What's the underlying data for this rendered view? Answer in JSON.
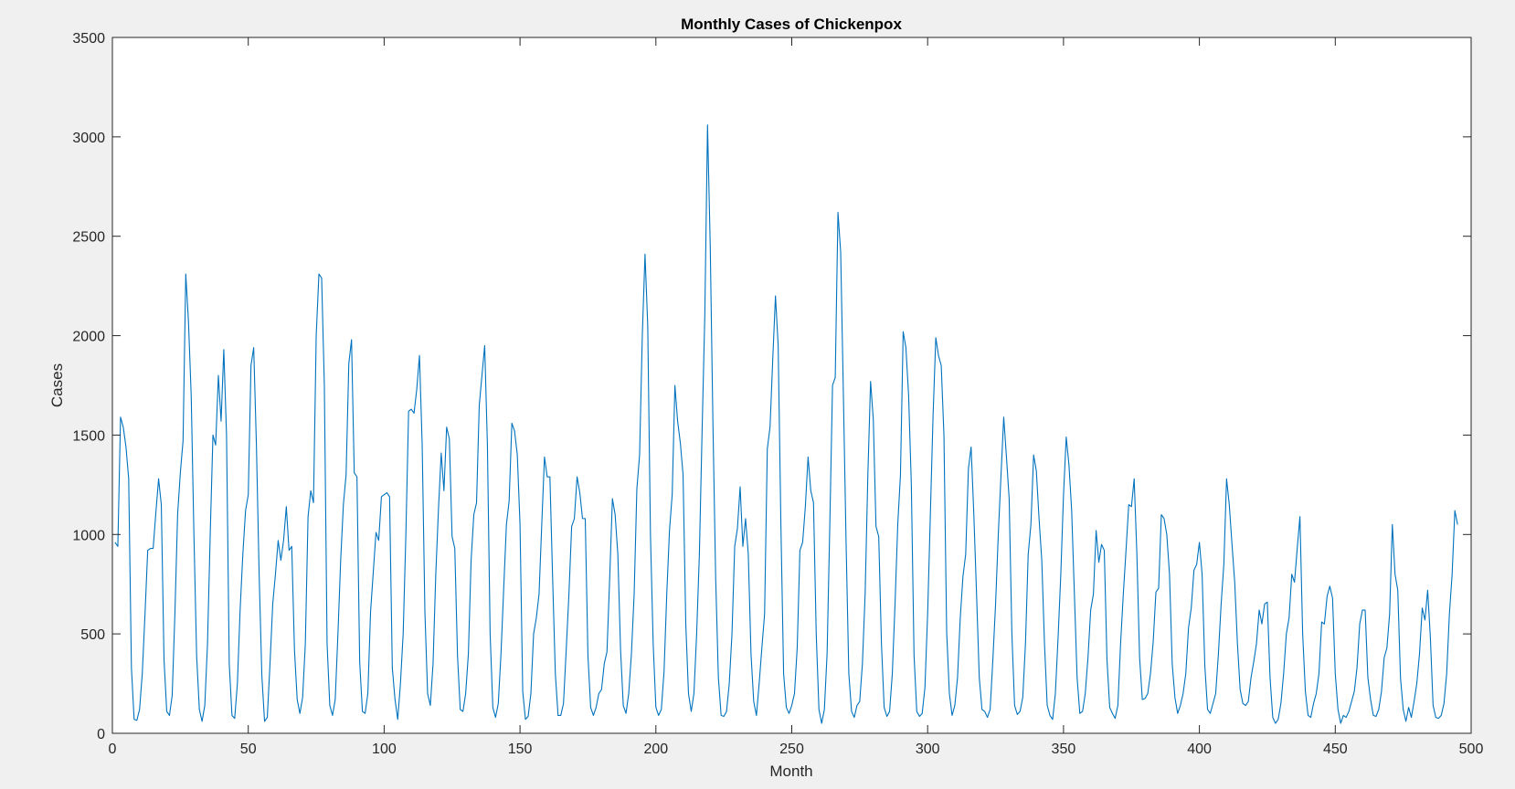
{
  "chart_data": {
    "type": "line",
    "title": "Monthly Cases of Chickenpox",
    "xlabel": "Month",
    "ylabel": "Cases",
    "xlim": [
      0,
      500
    ],
    "ylim": [
      0,
      3500
    ],
    "grid": false,
    "x_ticks": [
      0,
      50,
      100,
      150,
      200,
      250,
      300,
      350,
      400,
      450,
      500
    ],
    "y_ticks": [
      0,
      500,
      1000,
      1500,
      2000,
      2500,
      3000,
      3500
    ],
    "x_tick_labels": [
      "0",
      "50",
      "100",
      "150",
      "200",
      "250",
      "300",
      "350",
      "400",
      "450",
      "500"
    ],
    "y_tick_labels": [
      "0",
      "500",
      "1000",
      "1500",
      "2000",
      "2500",
      "3000",
      "3500"
    ],
    "series": [
      {
        "name": "Cases",
        "color": "#0072bd",
        "x_start": 1,
        "values": [
          960,
          940,
          1590,
          1540,
          1440,
          1280,
          330,
          70,
          65,
          120,
          300,
          600,
          920,
          930,
          930,
          1110,
          1280,
          1150,
          370,
          110,
          90,
          190,
          600,
          1100,
          1310,
          1470,
          2310,
          2070,
          1700,
          1000,
          390,
          120,
          60,
          140,
          450,
          1000,
          1500,
          1450,
          1800,
          1570,
          1930,
          1500,
          350,
          90,
          75,
          250,
          620,
          900,
          1120,
          1200,
          1850,
          1940,
          1450,
          800,
          290,
          60,
          80,
          350,
          650,
          800,
          970,
          870,
          970,
          1140,
          920,
          940,
          420,
          170,
          100,
          180,
          450,
          1090,
          1220,
          1160,
          2000,
          2310,
          2290,
          1750,
          450,
          140,
          90,
          170,
          500,
          870,
          1150,
          1300,
          1860,
          1980,
          1310,
          1290,
          360,
          110,
          100,
          200,
          610,
          810,
          1010,
          970,
          1190,
          1200,
          1210,
          1190,
          330,
          170,
          70,
          250,
          500,
          1000,
          1620,
          1630,
          1610,
          1730,
          1900,
          1450,
          610,
          200,
          140,
          350,
          800,
          1130,
          1410,
          1220,
          1540,
          1480,
          990,
          930,
          390,
          120,
          110,
          200,
          400,
          870,
          1100,
          1160,
          1650,
          1800,
          1950,
          1450,
          500,
          130,
          80,
          150,
          400,
          730,
          1050,
          1170,
          1560,
          1520,
          1400,
          1050,
          210,
          70,
          85,
          200,
          500,
          580,
          700,
          1050,
          1390,
          1290,
          1290,
          780,
          300,
          90,
          90,
          150,
          420,
          700,
          1040,
          1080,
          1290,
          1210,
          1080,
          1080,
          390,
          130,
          90,
          130,
          200,
          220,
          350,
          410,
          780,
          1180,
          1100,
          900,
          420,
          140,
          100,
          200,
          400,
          700,
          1230,
          1400,
          2000,
          2410,
          2050,
          1000,
          450,
          130,
          90,
          120,
          310,
          700,
          1020,
          1200,
          1750,
          1570,
          1460,
          1300,
          550,
          200,
          110,
          200,
          500,
          900,
          1520,
          2100,
          3060,
          2450,
          1550,
          780,
          280,
          90,
          85,
          110,
          250,
          500,
          940,
          1030,
          1240,
          940,
          1080,
          900,
          400,
          160,
          90,
          250,
          430,
          600,
          1430,
          1540,
          1880,
          2200,
          1950,
          1050,
          300,
          130,
          100,
          140,
          200,
          430,
          920,
          960,
          1140,
          1390,
          1220,
          1160,
          500,
          120,
          50,
          120,
          400,
          1050,
          1750,
          1790,
          2620,
          2420,
          1700,
          950,
          300,
          110,
          80,
          140,
          160,
          350,
          700,
          1300,
          1770,
          1580,
          1040,
          990,
          450,
          130,
          85,
          110,
          300,
          650,
          1050,
          1300,
          2020,
          1940,
          1700,
          1250,
          390,
          110,
          85,
          100,
          230,
          600,
          1100,
          1600,
          1990,
          1900,
          1850,
          1500,
          510,
          200,
          90,
          140,
          280,
          580,
          790,
          900,
          1330,
          1440,
          1100,
          700,
          280,
          120,
          110,
          80,
          120,
          370,
          650,
          1000,
          1300,
          1590,
          1390,
          1180,
          500,
          140,
          95,
          110,
          180,
          450,
          900,
          1050,
          1400,
          1320,
          1080,
          870,
          450,
          140,
          90,
          70,
          200,
          480,
          800,
          1200,
          1490,
          1350,
          1120,
          700,
          280,
          100,
          110,
          200,
          380,
          620,
          700,
          1020,
          860,
          950,
          920,
          370,
          130,
          100,
          75,
          140,
          450,
          700,
          920,
          1150,
          1140,
          1280,
          900,
          380,
          170,
          175,
          200,
          300,
          460,
          710,
          730,
          1100,
          1080,
          1000,
          800,
          350,
          180,
          100,
          140,
          200,
          300,
          530,
          630,
          820,
          850,
          960,
          800,
          340,
          120,
          100,
          150,
          200,
          400,
          650,
          850,
          1280,
          1150,
          950,
          760,
          450,
          220,
          150,
          140,
          160,
          280,
          360,
          450,
          620,
          550,
          650,
          660,
          280,
          80,
          50,
          70,
          150,
          300,
          500,
          580,
          800,
          760,
          930,
          1090,
          500,
          210,
          90,
          80,
          150,
          200,
          300,
          560,
          550,
          690,
          740,
          680,
          300,
          120,
          50,
          90,
          80,
          110,
          160,
          210,
          330,
          550,
          620,
          620,
          280,
          170,
          90,
          85,
          120,
          210,
          380,
          430,
          600,
          1050,
          800,
          720,
          280,
          120,
          60,
          130,
          80,
          160,
          250,
          400,
          630,
          570,
          720,
          480,
          140,
          80,
          75,
          90,
          150,
          300,
          600,
          800,
          1120,
          1050
        ]
      }
    ]
  }
}
